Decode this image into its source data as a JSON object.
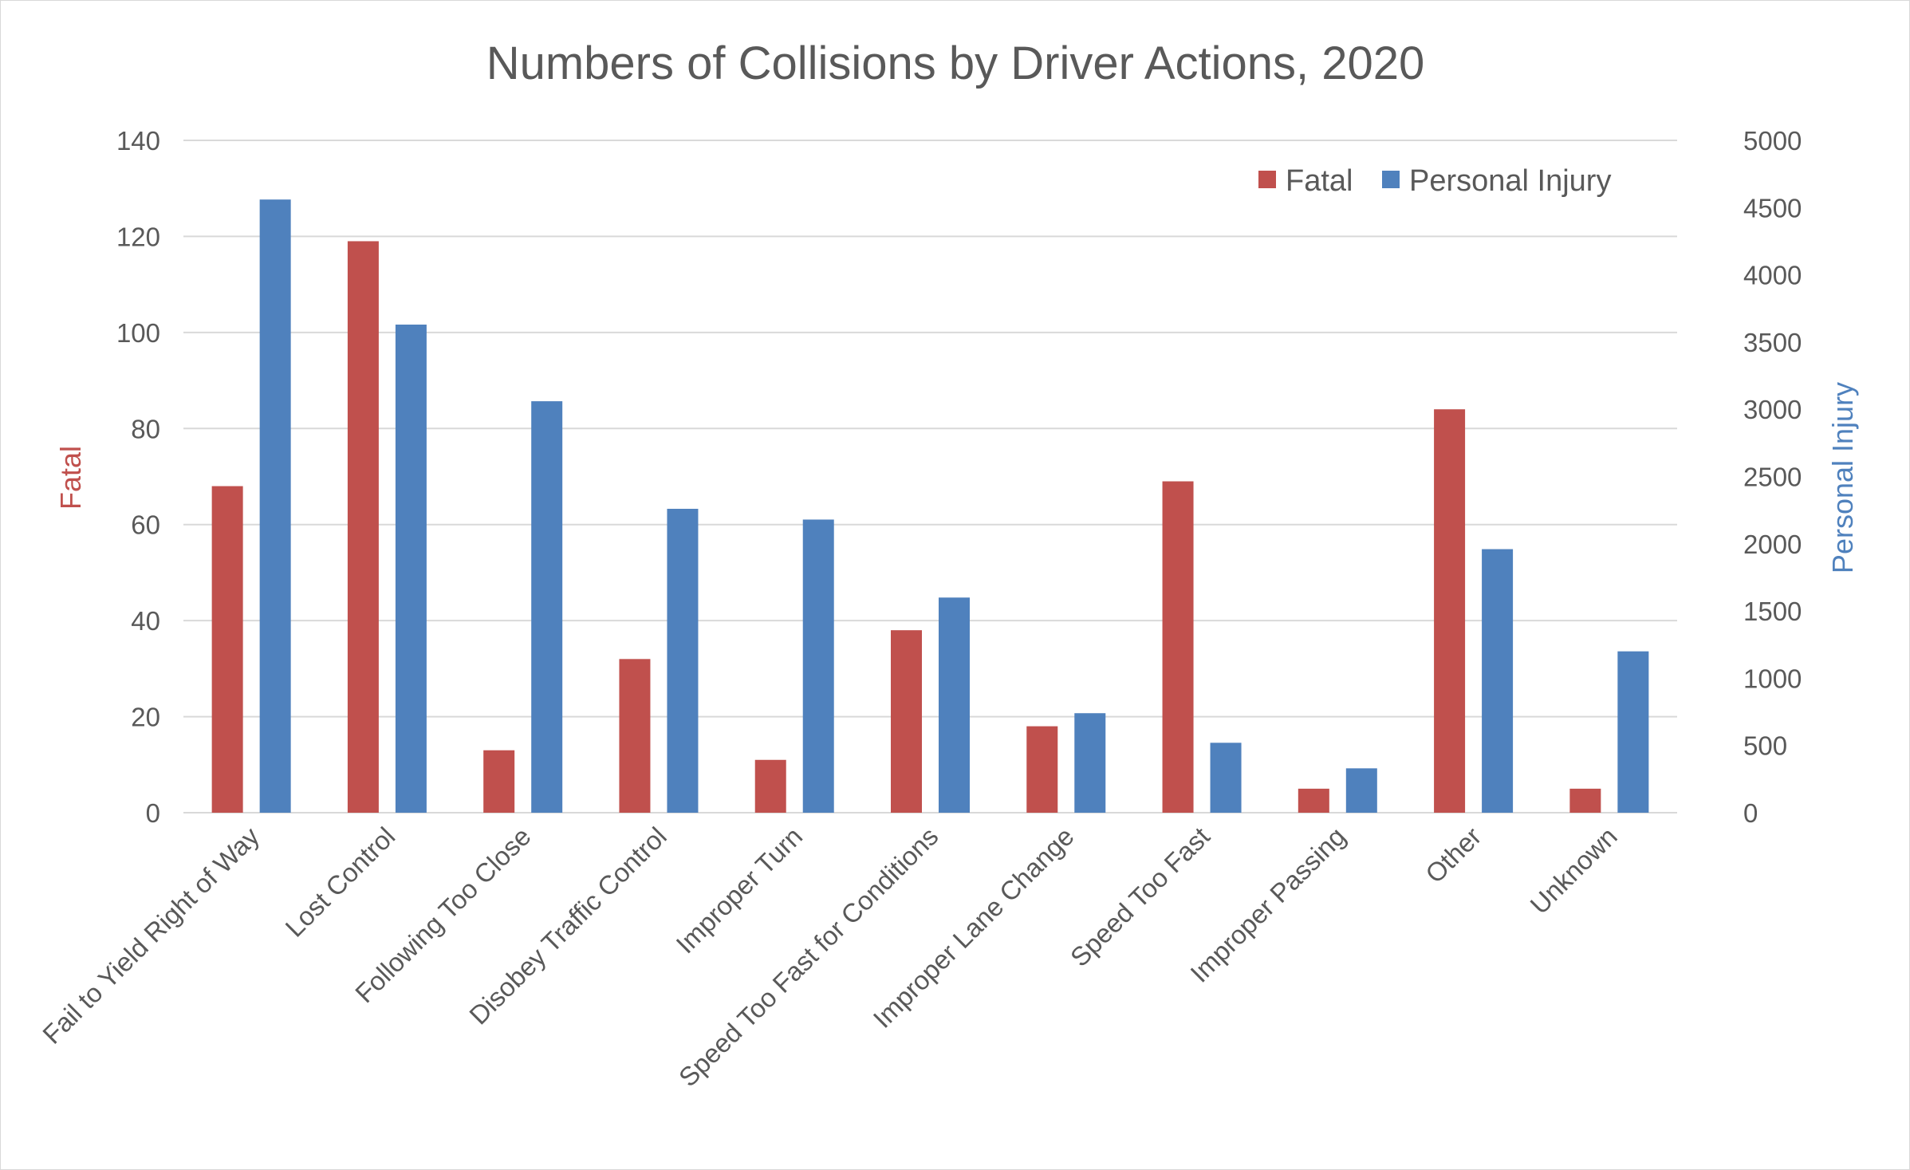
{
  "chart_data": {
    "type": "bar",
    "title": "Numbers of Collisions by Driver Actions, 2020",
    "categories": [
      "Fail to Yield Right of Way",
      "Lost Control",
      "Following Too Close",
      "Disobey Traffic Control",
      "Improper Turn",
      "Speed Too Fast for Conditions",
      "Improper Lane Change",
      "Speed Too Fast",
      "Improper Passing",
      "Other",
      "Unknown"
    ],
    "series": [
      {
        "name": "Fatal",
        "axis": "left",
        "color": "#c0504d",
        "values": [
          68,
          119,
          13,
          32,
          11,
          38,
          18,
          69,
          5,
          84,
          5
        ]
      },
      {
        "name": "Personal Injury",
        "axis": "right",
        "color": "#4f81bd",
        "values": [
          4560,
          3630,
          3060,
          2260,
          2180,
          1600,
          740,
          520,
          330,
          1960,
          1200
        ]
      }
    ],
    "y_left": {
      "label": "Fatal",
      "min": 0,
      "max": 140,
      "ticks": [
        0,
        20,
        40,
        60,
        80,
        100,
        120,
        140
      ],
      "color": "#c0504d"
    },
    "y_right": {
      "label": "Personal Injury",
      "min": 0,
      "max": 5000,
      "ticks": [
        0,
        500,
        1000,
        1500,
        2000,
        2500,
        3000,
        3500,
        4000,
        4500,
        5000
      ],
      "color": "#4f81bd"
    },
    "grid": true,
    "legend": {
      "position": "top-right",
      "entries": [
        "Fatal",
        "Personal Injury"
      ]
    }
  }
}
